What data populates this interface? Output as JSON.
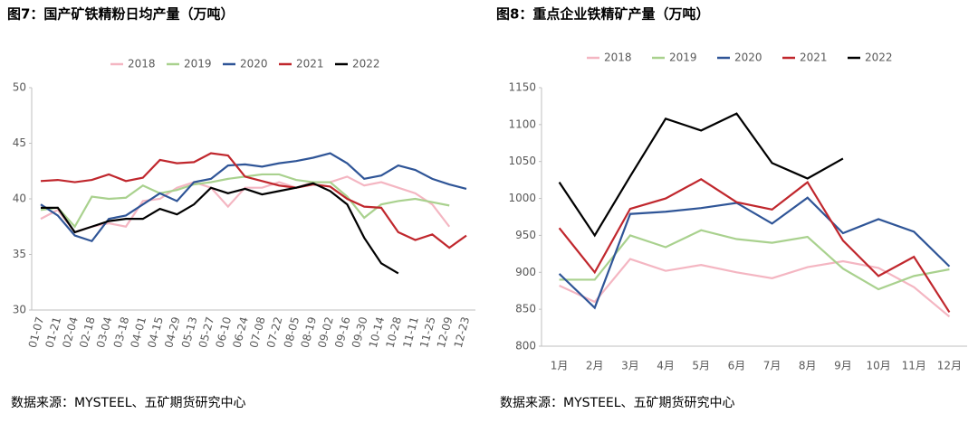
{
  "chart_data": [
    {
      "type": "line",
      "title": "图7：国产矿铁精粉日均产量（万吨）",
      "source": "数据来源：MYSTEEL、五矿期货研究中心",
      "categories": [
        "01-07",
        "01-21",
        "02-04",
        "02-18",
        "03-04",
        "03-18",
        "04-01",
        "04-15",
        "04-29",
        "05-13",
        "05-27",
        "06-10",
        "06-24",
        "07-08",
        "07-22",
        "08-05",
        "08-19",
        "09-02",
        "09-16",
        "09-30",
        "10-14",
        "10-28",
        "11-11",
        "11-25",
        "12-09",
        "12-23"
      ],
      "ylim": [
        30,
        50
      ],
      "yticks": [
        30,
        35,
        40,
        45,
        50
      ],
      "grid": false,
      "legend": "top",
      "series": [
        {
          "name": "2018",
          "color": "#f4b6c2",
          "values": [
            38.2,
            39.0,
            37.0,
            37.5,
            37.8,
            37.5,
            39.8,
            40.0,
            41.0,
            41.5,
            41.0,
            39.3,
            41.0,
            41.0,
            41.5,
            41.0,
            41.5,
            41.5,
            42.0,
            41.2,
            41.5,
            41.0,
            40.5,
            39.5,
            37.5,
            null
          ]
        },
        {
          "name": "2019",
          "color": "#a9d18e",
          "values": [
            39.0,
            39.2,
            37.5,
            40.2,
            40.0,
            40.1,
            41.2,
            40.5,
            40.8,
            41.3,
            41.5,
            41.8,
            42.0,
            42.2,
            42.2,
            41.7,
            41.5,
            41.5,
            40.2,
            38.3,
            39.5,
            39.8,
            40.0,
            39.7,
            39.4,
            null
          ]
        },
        {
          "name": "2020",
          "color": "#2f5597",
          "values": [
            39.5,
            38.5,
            36.7,
            36.2,
            38.2,
            38.5,
            39.5,
            40.5,
            39.8,
            41.5,
            41.8,
            43.0,
            43.1,
            42.9,
            43.2,
            43.4,
            43.7,
            44.1,
            43.2,
            41.8,
            42.1,
            43.0,
            42.6,
            41.8,
            41.3,
            40.9
          ]
        },
        {
          "name": "2021",
          "color": "#c0272d",
          "values": [
            41.6,
            41.7,
            41.5,
            41.7,
            42.2,
            41.6,
            41.9,
            43.5,
            43.2,
            43.3,
            44.1,
            43.9,
            42.0,
            41.6,
            41.2,
            41.0,
            41.3,
            41.1,
            40.0,
            39.3,
            39.2,
            37.0,
            36.3,
            36.8,
            35.6,
            36.7
          ]
        },
        {
          "name": "2022",
          "color": "#000000",
          "values": [
            39.2,
            39.2,
            37.0,
            37.5,
            38.0,
            38.2,
            38.2,
            39.1,
            38.6,
            39.5,
            41.0,
            40.5,
            40.9,
            40.4,
            40.7,
            41.0,
            41.4,
            40.7,
            39.5,
            36.5,
            34.2,
            33.3,
            null,
            null,
            null,
            null
          ]
        }
      ]
    },
    {
      "type": "line",
      "title": "图8：重点企业铁精矿产量（万吨）",
      "source": "数据来源：MYSTEEL、五矿期货研究中心",
      "categories": [
        "1月",
        "2月",
        "3月",
        "4月",
        "5月",
        "6月",
        "7月",
        "8月",
        "9月",
        "10月",
        "11月",
        "12月"
      ],
      "ylim": [
        800,
        1150
      ],
      "yticks": [
        800,
        850,
        900,
        950,
        1000,
        1050,
        1100,
        1150
      ],
      "grid": false,
      "legend": "top",
      "series": [
        {
          "name": "2018",
          "color": "#f4b6c2",
          "values": [
            882,
            860,
            918,
            902,
            910,
            900,
            892,
            907,
            915,
            906,
            880,
            840
          ]
        },
        {
          "name": "2019",
          "color": "#a9d18e",
          "values": [
            890,
            890,
            950,
            934,
            957,
            945,
            940,
            948,
            905,
            877,
            895,
            904
          ]
        },
        {
          "name": "2020",
          "color": "#2f5597",
          "values": [
            898,
            852,
            979,
            982,
            987,
            994,
            966,
            1001,
            953,
            972,
            955,
            908
          ]
        },
        {
          "name": "2021",
          "color": "#c0272d",
          "values": [
            960,
            900,
            986,
            1000,
            1026,
            995,
            985,
            1022,
            943,
            895,
            921,
            846
          ]
        },
        {
          "name": "2022",
          "color": "#000000",
          "values": [
            1022,
            950,
            1030,
            1108,
            1092,
            1115,
            1048,
            1027,
            1054,
            null,
            null,
            null
          ]
        }
      ]
    }
  ]
}
